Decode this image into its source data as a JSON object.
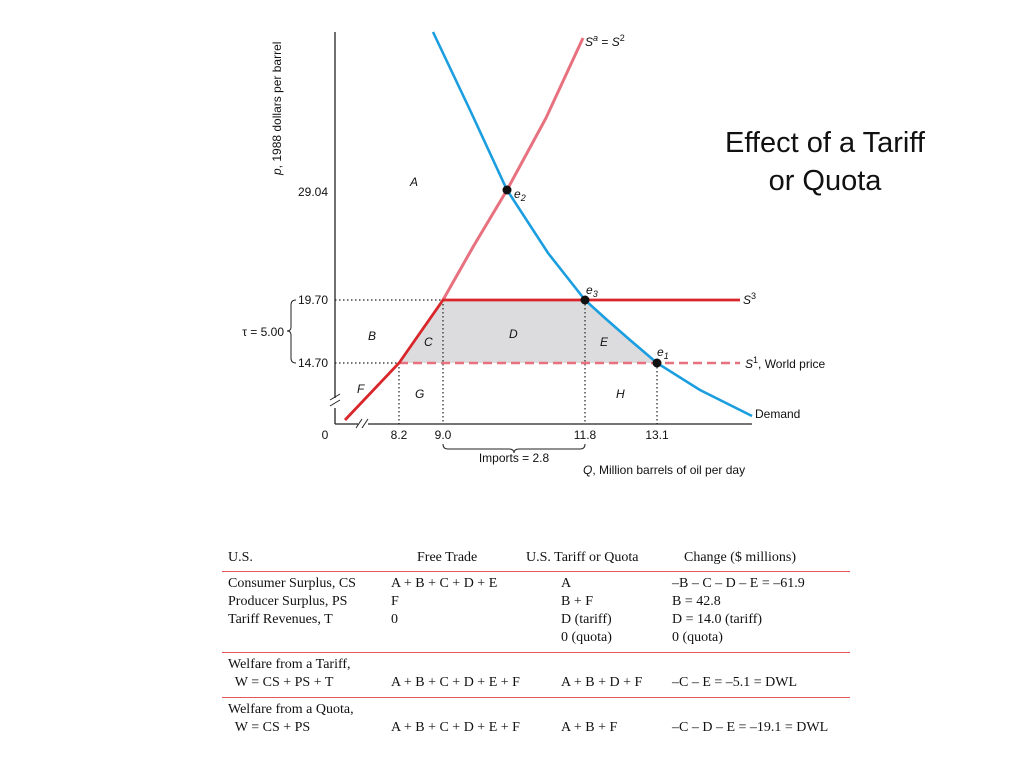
{
  "title": {
    "line1": "Effect of a Tariff",
    "line2": "or Quota"
  },
  "graph": {
    "y_axis_label": "p, 1988 dollars per barrel",
    "x_axis_label": "Q, Million barrels of oil per day",
    "y_ticks": [
      "29.04",
      "19.70",
      "14.70"
    ],
    "x_ticks": [
      "0",
      "8.2",
      "9.0",
      "11.8",
      "13.1"
    ],
    "tau_label": "τ = 5.00",
    "imports_label": "Imports = 2.8",
    "curve_labels": {
      "supply_a": "Sa = S2",
      "supply_3": "S3",
      "supply_1": "S1, World price",
      "demand": "Demand"
    },
    "points": [
      "e2",
      "e3",
      "e1"
    ],
    "regions": [
      "A",
      "B",
      "C",
      "D",
      "E",
      "F",
      "G",
      "H"
    ],
    "colors": {
      "supply": "#e8717f",
      "supply_dark": "#d9262b",
      "demand": "#1a9ee0",
      "world_price": "#e8717f",
      "shade": "#dcdcde"
    }
  },
  "table": {
    "headers": [
      "U.S.",
      "Free Trade",
      "U.S. Tariff or Quota",
      "Change ($ millions)"
    ],
    "surplus": {
      "col1": [
        "Consumer Surplus, CS",
        "Producer Surplus, PS",
        "Tariff Revenues, T",
        ""
      ],
      "col2": [
        "A + B + C + D + E",
        "F",
        "0",
        ""
      ],
      "col3": [
        "A",
        "B + F",
        "D (tariff)",
        "0 (quota)"
      ],
      "col4": [
        "–B – C – D – E = –61.9",
        "B = 42.8",
        "D = 14.0 (tariff)",
        "0 (quota)"
      ]
    },
    "tariff": {
      "col1": [
        "Welfare from a Tariff,",
        "  W = CS + PS + T"
      ],
      "col2": [
        "",
        "A + B + C + D + E + F"
      ],
      "col3": [
        "",
        "A + B + D + F"
      ],
      "col4": [
        "",
        "–C – E = –5.1 = DWL"
      ]
    },
    "quota": {
      "col1": [
        "Welfare from a Quota,",
        "  W = CS + PS"
      ],
      "col2": [
        "",
        "A + B + C + D + E + F"
      ],
      "col3": [
        "",
        "A + B + F"
      ],
      "col4": [
        "",
        "–C – D – E = –19.1 = DWL"
      ]
    }
  }
}
